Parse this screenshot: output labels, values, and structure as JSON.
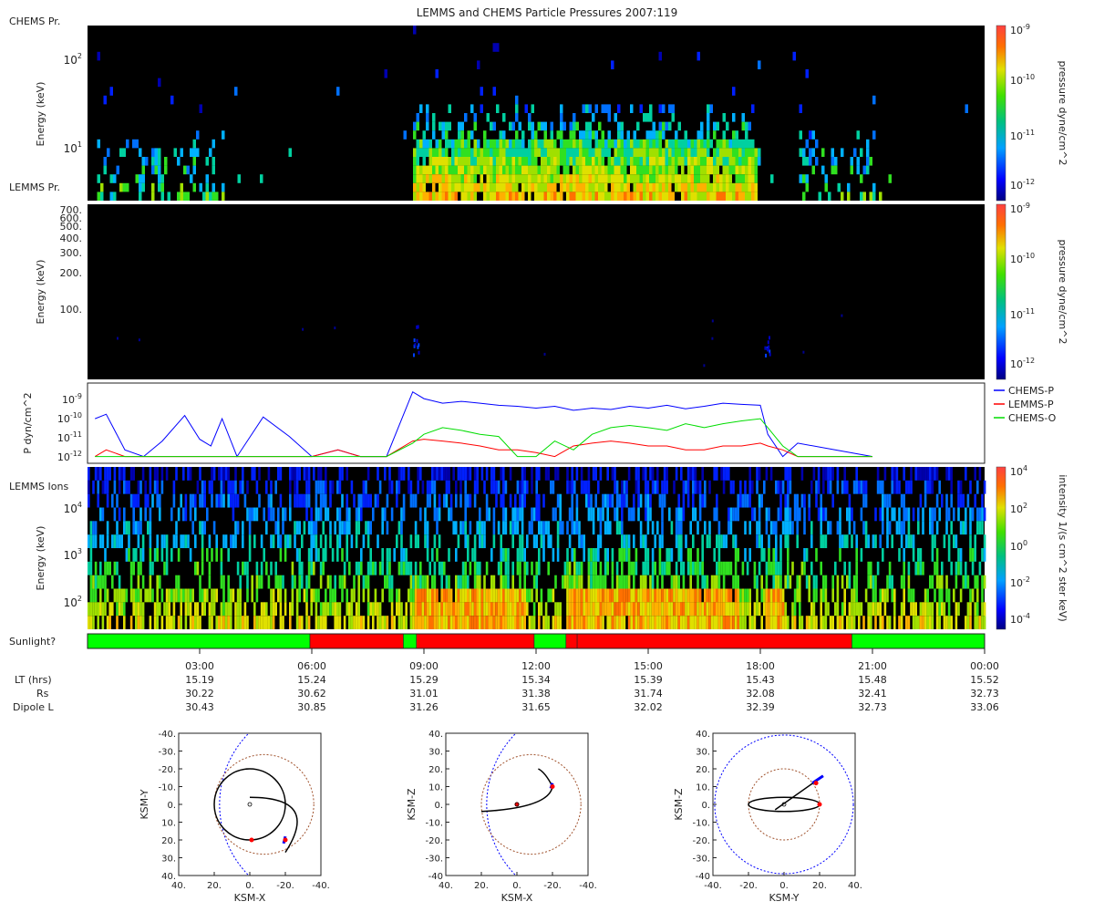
{
  "title": "LEMMS and CHEMS Particle Pressures  2007:119",
  "panel1": {
    "label_top": "CHEMS Pr.",
    "label_bottom": "LEMMS Pr.",
    "ylabel": "Energy (keV)",
    "yticks": [
      "10",
      "10"
    ],
    "yticks_exp": [
      "2",
      "1"
    ]
  },
  "panel2": {
    "ylabel": "Energy (keV)",
    "yticks": [
      "700.",
      "600.",
      "500.",
      "400.",
      "300.",
      "200.",
      "100."
    ]
  },
  "pressure_colorbar": {
    "label": "pressure dyne/cm^2",
    "ticks": [
      "10",
      "10",
      "10",
      "10"
    ],
    "ticks_exp": [
      "-9",
      "-10",
      "-11",
      "-12"
    ]
  },
  "intensity_colorbar": {
    "label": "intensity 1/(s cm^2 ster keV)",
    "ticks": [
      "10",
      "10",
      "10",
      "10",
      "10"
    ],
    "ticks_exp": [
      "4",
      "2",
      "0",
      "-2",
      "-4"
    ]
  },
  "panel4": {
    "label": "LEMMS Ions",
    "ylabel": "Energy (keV)",
    "yticks": [
      "10",
      "10",
      "10"
    ],
    "yticks_exp": [
      "4",
      "3",
      "2"
    ]
  },
  "sunlight": {
    "label": "Sunlight?",
    "colors": {
      "sun": "#00ff00",
      "shadow": "#ff0000"
    },
    "segments": [
      {
        "start_hr": 0.0,
        "end_hr": 5.95,
        "state": "sun"
      },
      {
        "start_hr": 5.95,
        "end_hr": 8.45,
        "state": "shadow"
      },
      {
        "start_hr": 8.45,
        "end_hr": 8.8,
        "state": "sun"
      },
      {
        "start_hr": 8.8,
        "end_hr": 11.95,
        "state": "shadow"
      },
      {
        "start_hr": 11.95,
        "end_hr": 12.8,
        "state": "sun"
      },
      {
        "start_hr": 12.8,
        "end_hr": 13.1,
        "state": "shadow"
      },
      {
        "start_hr": 13.1,
        "end_hr": 20.45,
        "state": "shadow"
      },
      {
        "start_hr": 20.45,
        "end_hr": 24.0,
        "state": "sun"
      }
    ]
  },
  "time_axis": {
    "ticks": [
      "03:00",
      "06:00",
      "09:00",
      "12:00",
      "15:00",
      "18:00",
      "21:00",
      "00:00"
    ],
    "rows": [
      {
        "label": "LT (hrs)",
        "values": [
          "15.19",
          "15.24",
          "15.29",
          "15.34",
          "15.39",
          "15.43",
          "15.48",
          "15.52"
        ]
      },
      {
        "label": "Rs",
        "values": [
          "30.22",
          "30.62",
          "31.01",
          "31.38",
          "31.74",
          "32.08",
          "32.41",
          "32.73"
        ]
      },
      {
        "label": "Dipole L",
        "values": [
          "30.43",
          "30.85",
          "31.26",
          "31.65",
          "32.02",
          "32.39",
          "32.73",
          "33.06"
        ]
      }
    ]
  },
  "chart_data": [
    {
      "type": "heatmap",
      "panel": "CHEMS / LEMMS pressure spectrogram",
      "x_range_hours": [
        0,
        24
      ],
      "ylabel": "Energy (keV)",
      "log_y": true,
      "color_scale": "pressure dyne/cm^2",
      "active_intervals_hr": [
        [
          0.2,
          3.6
        ],
        [
          8.7,
          18.0
        ],
        [
          19.0,
          21.0
        ]
      ]
    },
    {
      "type": "heatmap",
      "panel": "LEMMS pressure spectrogram",
      "x_range_hours": [
        0,
        24
      ],
      "ylabel": "Energy (keV)",
      "log_y": true,
      "color_scale": "pressure dyne/cm^2",
      "bursts_hr": [
        8.7,
        18.1
      ]
    },
    {
      "type": "line",
      "ylabel": "P dyn/cm^2",
      "log_y": true,
      "ylim": [
        5e-13,
        2e-09
      ],
      "yticks": [
        "10",
        "10",
        "10",
        "10"
      ],
      "yticks_exp": [
        "-9",
        "-10",
        "-11",
        "-12"
      ],
      "x_hours": [
        0.2,
        0.5,
        1.0,
        1.5,
        2.0,
        2.6,
        3.0,
        3.3,
        3.6,
        4.0,
        4.7,
        5.4,
        6.0,
        6.7,
        7.3,
        8.0,
        8.7,
        9.0,
        9.5,
        10.0,
        10.5,
        11.0,
        11.5,
        12.0,
        12.5,
        13.0,
        13.5,
        14.0,
        14.5,
        15.0,
        15.5,
        16.0,
        16.5,
        17.0,
        17.5,
        18.0,
        18.2,
        18.6,
        19.0,
        20.0,
        21.0
      ],
      "series": [
        {
          "name": "CHEMS-P",
          "color": "#0000ff",
          "values": [
            5e-11,
            8e-11,
            2e-12,
            1e-12,
            5e-12,
            7e-11,
            6e-12,
            3e-12,
            5e-11,
            1e-12,
            6e-11,
            8e-12,
            1e-12,
            2e-12,
            1e-12,
            1e-12,
            8e-10,
            4e-10,
            2.5e-10,
            3e-10,
            2.5e-10,
            2e-10,
            1.8e-10,
            1.5e-10,
            1.8e-10,
            1.2e-10,
            1.5e-10,
            1.3e-10,
            1.8e-10,
            1.5e-10,
            2e-10,
            1.4e-10,
            1.8e-10,
            2.5e-10,
            2.2e-10,
            2e-10,
            1e-11,
            1e-12,
            4e-12,
            2e-12,
            1e-12
          ]
        },
        {
          "name": "LEMMS-P",
          "color": "#ff0000",
          "values": [
            1e-12,
            2e-12,
            1e-12,
            1e-12,
            1e-12,
            1e-12,
            1e-12,
            1e-12,
            1e-12,
            1e-12,
            1e-12,
            1e-12,
            1e-12,
            2e-12,
            1e-12,
            1e-12,
            5e-12,
            6e-12,
            5e-12,
            4e-12,
            3e-12,
            2e-12,
            2e-12,
            1.5e-12,
            1e-12,
            3e-12,
            4e-12,
            5e-12,
            4e-12,
            3e-12,
            3e-12,
            2e-12,
            2e-12,
            3e-12,
            3e-12,
            4e-12,
            3e-12,
            2e-12,
            1e-12,
            1e-12,
            1e-12
          ]
        },
        {
          "name": "CHEMS-O",
          "color": "#00dd00",
          "values": [
            1e-12,
            1e-12,
            1e-12,
            1e-12,
            1e-12,
            1e-12,
            1e-12,
            1e-12,
            1e-12,
            1e-12,
            1e-12,
            1e-12,
            1e-12,
            1e-12,
            1e-12,
            1e-12,
            4e-12,
            1e-11,
            2e-11,
            1.5e-11,
            1e-11,
            8e-12,
            1e-12,
            1e-12,
            5e-12,
            2e-12,
            1e-11,
            2e-11,
            2.5e-11,
            2e-11,
            1.5e-11,
            3e-11,
            2e-11,
            3e-11,
            4e-11,
            5e-11,
            2e-11,
            3e-12,
            1e-12,
            1e-12,
            1e-12
          ]
        }
      ]
    },
    {
      "type": "heatmap",
      "panel": "LEMMS Ions spectrogram",
      "x_range_hours": [
        0,
        24
      ],
      "ylabel": "Energy (keV)",
      "log_y": true,
      "color_scale": "intensity 1/(s cm^2 ster keV)",
      "enhanced_intervals_hr": [
        [
          8.7,
          11.7
        ],
        [
          12.8,
          17.4
        ],
        [
          18.1,
          18.6
        ]
      ]
    }
  ],
  "legend": [
    {
      "name": "CHEMS-P",
      "color": "#0000ff"
    },
    {
      "name": "LEMMS-P",
      "color": "#ff0000"
    },
    {
      "name": "CHEMS-O",
      "color": "#00dd00"
    }
  ],
  "orbit_plots": [
    {
      "xlabel": "KSM-X",
      "ylabel": "KSM-Y",
      "xticks": [
        "40.",
        "20.",
        "0.",
        "-20.",
        "-40."
      ],
      "yticks": [
        "-40.",
        "-30.",
        "-20.",
        "-10.",
        "0.",
        "10.",
        "20.",
        "30.",
        "40."
      ]
    },
    {
      "xlabel": "KSM-X",
      "ylabel": "KSM-Z",
      "xticks": [
        "40.",
        "20.",
        "0.",
        "-20.",
        "-40."
      ],
      "yticks": [
        "40.",
        "30.",
        "20.",
        "10.",
        "0.",
        "-10.",
        "-20.",
        "-30.",
        "-40"
      ]
    },
    {
      "xlabel": "KSM-Y",
      "ylabel": "KSM-Z",
      "xticks": [
        "-40.",
        "-20.",
        "0.",
        "20.",
        "40."
      ],
      "yticks": [
        "40.",
        "30.",
        "20.",
        "10.",
        "0.",
        "-10.",
        "-20.",
        "-30.",
        "-40"
      ]
    }
  ]
}
